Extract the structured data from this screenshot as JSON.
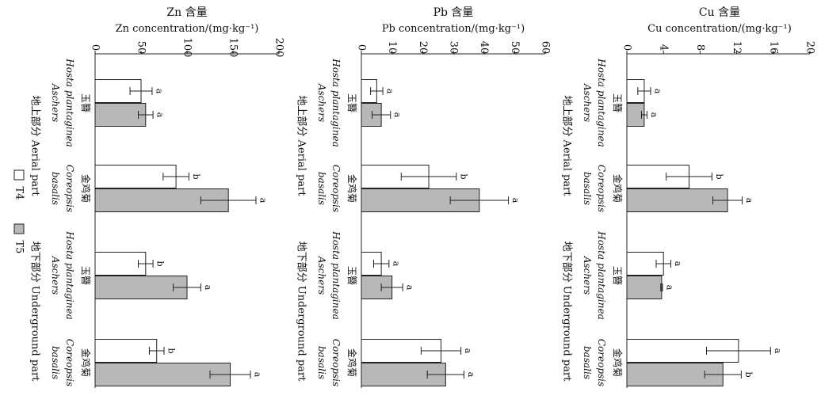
{
  "chart_data": [
    {
      "type": "bar",
      "title": "Cu 含量",
      "ylabel": "Cu concentration/(mg·kg⁻¹)",
      "ylim": [
        0,
        20
      ],
      "ticks": [
        "0",
        "4",
        "8",
        "12",
        "16",
        "20"
      ],
      "categories": [
        "玉簪 Hosta plantaginea Aschers",
        "金鸡菊 Coreopsis basalis",
        "玉簪 Hosta plantaginea Aschers",
        "金鸡菊 Coreopsis basalis"
      ],
      "series": [
        {
          "name": "T4",
          "values": [
            1.9,
            6.8,
            4.0,
            12.2
          ],
          "errors": [
            0.7,
            2.5,
            0.8,
            3.5
          ],
          "letters": [
            "a",
            "b",
            "a",
            "a"
          ]
        },
        {
          "name": "T5",
          "values": [
            1.9,
            11.0,
            3.8,
            10.5
          ],
          "errors": [
            0.3,
            1.6,
            0.1,
            2.0
          ],
          "letters": [
            "a",
            "a",
            "a",
            "b"
          ]
        }
      ]
    },
    {
      "type": "bar",
      "title": "Pb 含量",
      "ylabel": "Pb concentration/(mg·kg⁻¹)",
      "ylim": [
        0,
        60
      ],
      "ticks": [
        "0",
        "10",
        "20",
        "30",
        "40",
        "50",
        "60"
      ],
      "categories": [
        "玉簪 Hosta plantaginea Aschers",
        "金鸡菊 Coreopsis basalis",
        "玉簪 Hosta plantaginea Aschers",
        "金鸡菊 Coreopsis basalis"
      ],
      "series": [
        {
          "name": "T4",
          "values": [
            5.0,
            22.0,
            6.5,
            26.0
          ],
          "errors": [
            2.0,
            9.0,
            2.5,
            6.5
          ],
          "letters": [
            "a",
            "b",
            "a",
            "a"
          ]
        },
        {
          "name": "T5",
          "values": [
            6.5,
            38.5,
            10.0,
            27.5
          ],
          "errors": [
            3.0,
            9.5,
            3.5,
            6.0
          ],
          "letters": [
            "a",
            "a",
            "a",
            "a"
          ]
        }
      ]
    },
    {
      "type": "bar",
      "title": "Zn 含量",
      "ylabel": "Zn concentration/(mg·kg⁻¹)",
      "ylim": [
        0,
        200
      ],
      "ticks": [
        "0",
        "50",
        "100",
        "150",
        "200"
      ],
      "categories": [
        "玉簪 Hosta plantaginea Aschers",
        "金鸡菊 Coreopsis basalis",
        "玉簪 Hosta plantaginea Aschers",
        "金鸡菊 Coreopsis basalis"
      ],
      "series": [
        {
          "name": "T4",
          "values": [
            50,
            88,
            55,
            67
          ],
          "errors": [
            12,
            14,
            8,
            8
          ],
          "letters": [
            "a",
            "b",
            "b",
            "b"
          ]
        },
        {
          "name": "T5",
          "values": [
            55,
            145,
            100,
            147
          ],
          "errors": [
            8,
            30,
            15,
            22
          ],
          "letters": [
            "a",
            "a",
            "a",
            "a"
          ]
        }
      ]
    }
  ],
  "labels": {
    "species": [
      {
        "cn": "玉簪",
        "latin1": "Hosta plantaginea",
        "latin2": "Aschers"
      },
      {
        "cn": "金鸡菊",
        "latin1": "Coreopsis",
        "latin2": "basalis"
      },
      {
        "cn": "玉簪",
        "latin1": "Hosta plantaginea",
        "latin2": "Aschers"
      },
      {
        "cn": "金鸡菊",
        "latin1": "Coreopsis",
        "latin2": "basalis"
      }
    ],
    "groups": [
      "地上部分 Aerial part",
      "地下部分 Underground part"
    ]
  },
  "legend": [
    {
      "name": "T4",
      "color": "#ffffff"
    },
    {
      "name": "T5",
      "color": "#b8b8b8"
    }
  ],
  "colors": {
    "t4_fill": "#ffffff",
    "t5_fill": "#b8b8b8",
    "stroke": "#222222"
  }
}
